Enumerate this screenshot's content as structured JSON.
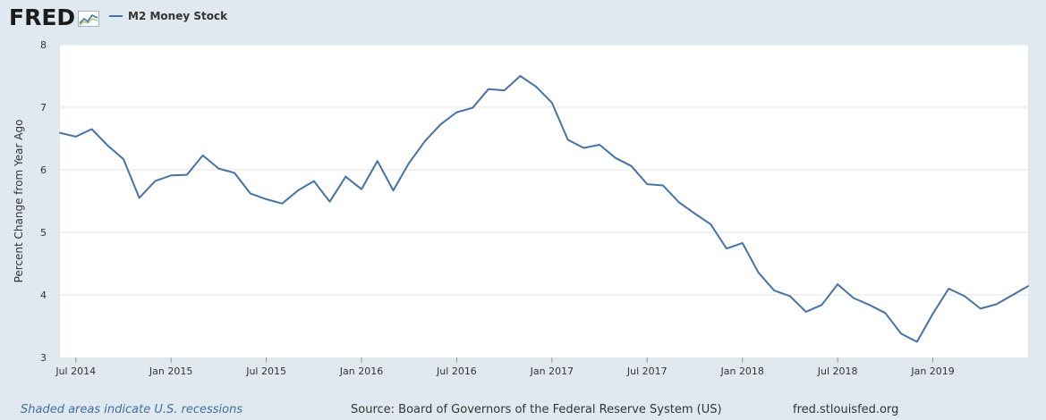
{
  "header": {
    "logo_text": "FRED",
    "legend_label": "M2 Money Stock"
  },
  "colors": {
    "series": "#4572a7",
    "plot_bg": "#ffffff",
    "page_bg": "#e1e9f0",
    "grid": "#e6e6e6",
    "text": "#333333",
    "link": "#3d6fa3"
  },
  "footer": {
    "recession_note": "Shaded areas indicate U.S. recessions",
    "source": "Source: Board of Governors of the Federal Reserve System (US)",
    "url": "fred.stlouisfed.org"
  },
  "chart_data": {
    "type": "line",
    "title": "",
    "xlabel": "",
    "ylabel": "Percent Change from Year Ago",
    "ylim": [
      3,
      8
    ],
    "yticks": [
      3,
      4,
      5,
      6,
      7,
      8
    ],
    "grid": true,
    "legend_position": "top-left",
    "x_range": [
      "2014-06",
      "2019-07"
    ],
    "xticks": [
      {
        "label": "Jul 2014",
        "date": "2014-07"
      },
      {
        "label": "Jan 2015",
        "date": "2015-01"
      },
      {
        "label": "Jul 2015",
        "date": "2015-07"
      },
      {
        "label": "Jan 2016",
        "date": "2016-01"
      },
      {
        "label": "Jul 2016",
        "date": "2016-07"
      },
      {
        "label": "Jan 2017",
        "date": "2017-01"
      },
      {
        "label": "Jul 2017",
        "date": "2017-07"
      },
      {
        "label": "Jan 2018",
        "date": "2018-01"
      },
      {
        "label": "Jul 2018",
        "date": "2018-07"
      },
      {
        "label": "Jan 2019",
        "date": "2019-01"
      }
    ],
    "series": [
      {
        "name": "M2 Money Stock",
        "x": [
          "2014-06",
          "2014-07",
          "2014-08",
          "2014-09",
          "2014-10",
          "2014-11",
          "2014-12",
          "2015-01",
          "2015-02",
          "2015-03",
          "2015-04",
          "2015-05",
          "2015-06",
          "2015-07",
          "2015-08",
          "2015-09",
          "2015-10",
          "2015-11",
          "2015-12",
          "2016-01",
          "2016-02",
          "2016-03",
          "2016-04",
          "2016-05",
          "2016-06",
          "2016-07",
          "2016-08",
          "2016-09",
          "2016-10",
          "2016-11",
          "2016-12",
          "2017-01",
          "2017-02",
          "2017-03",
          "2017-04",
          "2017-05",
          "2017-06",
          "2017-07",
          "2017-08",
          "2017-09",
          "2017-10",
          "2017-11",
          "2017-12",
          "2018-01",
          "2018-02",
          "2018-03",
          "2018-04",
          "2018-05",
          "2018-06",
          "2018-07",
          "2018-08",
          "2018-09",
          "2018-10",
          "2018-11",
          "2018-12",
          "2019-01",
          "2019-02",
          "2019-03",
          "2019-04",
          "2019-05"
        ],
        "y": [
          6.59,
          6.53,
          6.65,
          6.39,
          6.17,
          5.55,
          5.82,
          5.91,
          5.92,
          6.23,
          6.02,
          5.95,
          5.62,
          5.53,
          5.46,
          5.67,
          5.82,
          5.49,
          5.89,
          5.69,
          6.14,
          5.67,
          6.11,
          6.46,
          6.73,
          6.92,
          6.99,
          7.29,
          7.27,
          7.5,
          7.33,
          7.07,
          6.48,
          6.35,
          6.4,
          6.19,
          6.06,
          5.77,
          5.75,
          5.48,
          5.3,
          5.13,
          4.74,
          4.83,
          4.36,
          4.07,
          3.98,
          3.73,
          3.84,
          4.17,
          3.95,
          3.84,
          3.71,
          3.38,
          3.25,
          3.7,
          4.1,
          3.98,
          3.78,
          3.85
        ]
      }
    ],
    "last_point": {
      "x": "2019-06",
      "y": 4.14
    }
  }
}
